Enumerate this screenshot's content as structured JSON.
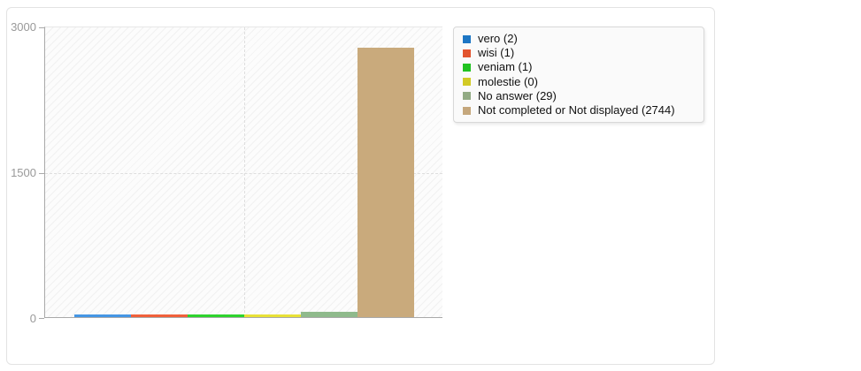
{
  "window": {
    "background_color": "#ffffff",
    "card_border_color": "#e3e3e3"
  },
  "chart_data": {
    "type": "bar",
    "title": "",
    "xlabel": "",
    "ylabel": "",
    "categories": [
      "vero",
      "wisi",
      "veniam",
      "molestie",
      "No answer",
      "Not completed or Not displayed"
    ],
    "values": [
      2,
      1,
      1,
      0,
      29,
      2744
    ],
    "ylim": [
      0,
      3000
    ],
    "ytick_values": [
      0,
      1500,
      3000
    ],
    "grid": "horizontal dashed gridline at 1500, vertical dashed gridline at plot center, hatched plot background",
    "legend_position": "top-right, outside plot",
    "bar_colors": [
      "#4596e4",
      "#f0603a",
      "#2dd32d",
      "#e8e136",
      "#8fba8c",
      "#c9aa7c"
    ],
    "legend_colors": [
      "#1d76c4",
      "#e2542e",
      "#21c321",
      "#d2ca25",
      "#92ab84",
      "#c5a77c"
    ]
  },
  "axis": {
    "ticks": [
      "3000",
      "1500",
      "0"
    ]
  },
  "legend": {
    "items": [
      {
        "label": "vero",
        "count": 2,
        "display": "vero (2)",
        "color": "#1d76c4"
      },
      {
        "label": "wisi",
        "count": 1,
        "display": "wisi (1)",
        "color": "#e2542e"
      },
      {
        "label": "veniam",
        "count": 1,
        "display": "veniam (1)",
        "color": "#21c321"
      },
      {
        "label": "molestie",
        "count": 0,
        "display": "molestie (0)",
        "color": "#d2ca25"
      },
      {
        "label": "No answer",
        "count": 29,
        "display": "No answer (29)",
        "color": "#92ab84"
      },
      {
        "label": "Not completed or Not displayed",
        "count": 2744,
        "display": "Not completed or Not displayed (2744)",
        "color": "#c5a77c"
      }
    ]
  }
}
